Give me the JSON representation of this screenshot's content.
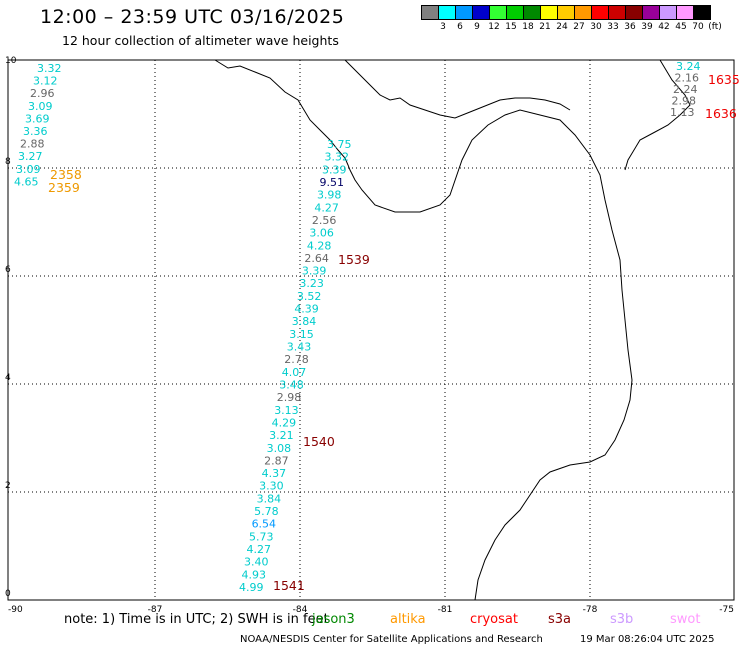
{
  "title": "12:00 – 23:59 UTC 03/16/2025",
  "subtitle": "12 hour collection of altimeter wave heights",
  "colorbar": {
    "colors": [
      "#808080",
      "#00ffff",
      "#0099ff",
      "#0000cc",
      "#33ff33",
      "#00cc00",
      "#008800",
      "#ffff00",
      "#ffcc00",
      "#ff9900",
      "#ff0000",
      "#cc0000",
      "#880000",
      "#990099",
      "#cc99ff",
      "#ff99ff",
      "#000000"
    ],
    "labels": [
      "3",
      "6",
      "9",
      "12",
      "15",
      "18",
      "21",
      "24",
      "27",
      "30",
      "33",
      "36",
      "39",
      "42",
      "45",
      "70",
      "(ft)"
    ]
  },
  "axes": {
    "x_ticks": [
      "-90",
      "-87",
      "-84",
      "-81",
      "-78",
      "-75"
    ],
    "y_ticks": [
      "10",
      "8",
      "6",
      "4",
      "2",
      "0"
    ]
  },
  "tracks": [
    {
      "id": "left",
      "color": "#009999",
      "values": [
        "3.32",
        "3.12",
        "2.96",
        "3.09",
        "3.69",
        "3.36",
        "2.88",
        "3.27",
        "3.09",
        "4.65"
      ],
      "value_colors": [
        "#00cccc",
        "#00cccc",
        "#666",
        "#00cccc",
        "#00cccc",
        "#00cccc",
        "#666",
        "#00cccc",
        "#00cccc",
        "#00cccc"
      ],
      "labels": [
        "2358",
        "2359"
      ],
      "label_color": "#ee9900"
    },
    {
      "id": "central",
      "values": [
        "3.75",
        "3.32",
        "3.39",
        "9.51",
        "3.98",
        "4.27",
        "2.56",
        "3.06",
        "4.28",
        "2.64",
        "3.39",
        "3.23",
        "3.52",
        "4.39",
        "3.84",
        "3.15",
        "3.43",
        "2.78",
        "4.07",
        "3.48",
        "2.98",
        "3.13",
        "4.29",
        "3.21",
        "3.08",
        "2.87",
        "4.37",
        "3.30",
        "3.84",
        "5.78",
        "6.54",
        "5.73",
        "4.27",
        "3.40",
        "4.93",
        "4.99"
      ],
      "value_colors": [
        "#00cccc",
        "#00cccc",
        "#00cccc",
        "#000066",
        "#00cccc",
        "#00cccc",
        "#666",
        "#00cccc",
        "#00cccc",
        "#666",
        "#00cccc",
        "#00cccc",
        "#00cccc",
        "#00cccc",
        "#00cccc",
        "#00cccc",
        "#00cccc",
        "#666",
        "#00cccc",
        "#00cccc",
        "#666",
        "#00cccc",
        "#00cccc",
        "#00cccc",
        "#00cccc",
        "#666",
        "#00cccc",
        "#00cccc",
        "#00cccc",
        "#00cccc",
        "#0099ff",
        "#00cccc",
        "#00cccc",
        "#00cccc",
        "#00cccc",
        "#00cccc"
      ],
      "labels": [
        "1539",
        "1540",
        "1541"
      ],
      "label_color": "#880000"
    },
    {
      "id": "right",
      "values": [
        "3.24",
        "2.16",
        "2.24",
        "2.98",
        "1.13"
      ],
      "value_colors": [
        "#00cccc",
        "#666",
        "#666",
        "#666",
        "#666"
      ],
      "labels": [
        "1635",
        "1636"
      ],
      "label_color": "#ee0000"
    }
  ],
  "note": "note:  1) Time is in UTC;  2) SWH is in feet",
  "legend": [
    {
      "name": "jason3",
      "color": "#008800"
    },
    {
      "name": "altika",
      "color": "#ff9900"
    },
    {
      "name": "cryosat",
      "color": "#ff0000"
    },
    {
      "name": "s3a",
      "color": "#880000"
    },
    {
      "name": "s3b",
      "color": "#cc99ff"
    },
    {
      "name": "swot",
      "color": "#ff99ff"
    }
  ],
  "footer": "NOAA/NESDIS Center for Satellite Applications and Research",
  "footer_date": "19 Mar 08:26:04 UTC 2025"
}
